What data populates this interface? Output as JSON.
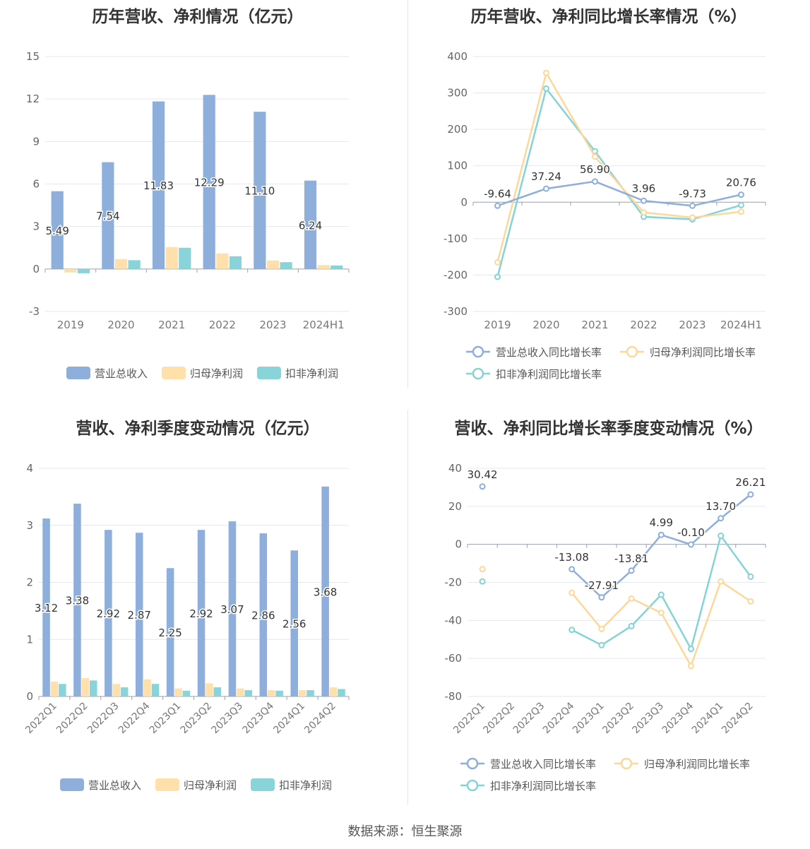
{
  "colors": {
    "revenue": "#8EAEDB",
    "net_profit": "#FFDFAA",
    "deducted_profit": "#88D4D8",
    "revenue_line": "#8EAEDB",
    "net_line": "#FDD89A",
    "deducted_line": "#85D3D6"
  },
  "source": "数据来源：恒生聚源",
  "chart_data": [
    {
      "id": "annual-bars",
      "type": "bar",
      "title": "历年营收、净利情况（亿元）",
      "categories": [
        "2019",
        "2020",
        "2021",
        "2022",
        "2023",
        "2024H1"
      ],
      "ylim": [
        -3,
        15
      ],
      "yticks": [
        15,
        12,
        9,
        6,
        3,
        0,
        -3
      ],
      "series": [
        {
          "name": "营业总收入",
          "values": [
            5.49,
            7.54,
            11.83,
            12.29,
            11.1,
            6.24
          ]
        },
        {
          "name": "归母净利润",
          "values": [
            -0.25,
            0.7,
            1.55,
            1.1,
            0.6,
            0.28
          ]
        },
        {
          "name": "扣非净利润",
          "values": [
            -0.3,
            0.62,
            1.5,
            0.9,
            0.48,
            0.25
          ]
        }
      ],
      "data_labels": [
        "5.49",
        "7.54",
        "11.83",
        "12.29",
        "11.10",
        "6.24"
      ],
      "legend": "bottom"
    },
    {
      "id": "annual-growth",
      "type": "line",
      "title": "历年营收、净利同比增长率情况（%）",
      "categories": [
        "2019",
        "2020",
        "2021",
        "2022",
        "2023",
        "2024H1"
      ],
      "ylim": [
        -300,
        400
      ],
      "yticks": [
        400,
        300,
        200,
        100,
        0,
        -100,
        -200,
        -300
      ],
      "series": [
        {
          "name": "营业总收入同比增长率",
          "values": [
            -9.64,
            37.24,
            56.9,
            3.96,
            -9.73,
            20.76
          ]
        },
        {
          "name": "归母净利润同比增长率",
          "values": [
            -165,
            355,
            125,
            -28,
            -42,
            -26
          ]
        },
        {
          "name": "扣非净利润同比增长率",
          "values": [
            -205,
            312,
            140,
            -40,
            -47,
            -8
          ]
        }
      ],
      "data_labels": [
        "-9.64",
        "37.24",
        "56.90",
        "3.96",
        "-9.73",
        "20.76"
      ],
      "legend": "bottom"
    },
    {
      "id": "quarterly-bars",
      "type": "bar",
      "title": "营收、净利季度变动情况（亿元）",
      "categories": [
        "2022Q1",
        "2022Q2",
        "2022Q3",
        "2022Q4",
        "2023Q1",
        "2023Q2",
        "2023Q3",
        "2023Q4",
        "2024Q1",
        "2024Q2"
      ],
      "ylim": [
        0,
        4
      ],
      "yticks": [
        4,
        3,
        2,
        1,
        0
      ],
      "series": [
        {
          "name": "营业总收入",
          "values": [
            3.12,
            3.38,
            2.92,
            2.87,
            2.25,
            2.92,
            3.07,
            2.86,
            2.56,
            3.68
          ]
        },
        {
          "name": "归母净利润",
          "values": [
            0.26,
            0.32,
            0.22,
            0.3,
            0.14,
            0.23,
            0.14,
            0.11,
            0.11,
            0.16
          ]
        },
        {
          "name": "扣非净利润",
          "values": [
            0.22,
            0.28,
            0.16,
            0.22,
            0.1,
            0.16,
            0.11,
            0.1,
            0.11,
            0.13
          ]
        }
      ],
      "data_labels": [
        "3.12",
        "3.38",
        "2.92",
        "2.87",
        "2.25",
        "2.92",
        "3.07",
        "2.86",
        "2.56",
        "3.68"
      ],
      "legend": "bottom"
    },
    {
      "id": "quarterly-growth",
      "type": "line",
      "title": "营收、净利同比增长率季度变动情况（%）",
      "categories": [
        "2022Q1",
        "2022Q2",
        "2022Q3",
        "2022Q4",
        "2023Q1",
        "2023Q2",
        "2023Q3",
        "2023Q4",
        "2024Q1",
        "2024Q2"
      ],
      "ylim": [
        -80,
        40
      ],
      "yticks": [
        40,
        20,
        0,
        -20,
        -40,
        -60,
        -80
      ],
      "series": [
        {
          "name": "营业总收入同比增长率",
          "values": [
            30.42,
            null,
            null,
            -13.08,
            -27.91,
            -13.81,
            4.99,
            -0.1,
            13.7,
            26.21
          ]
        },
        {
          "name": "归母净利润同比增长率",
          "values": [
            -13,
            null,
            null,
            -25.5,
            -44.5,
            -28.5,
            -36,
            -64,
            -19.5,
            -30
          ]
        },
        {
          "name": "扣非净利润同比增长率",
          "values": [
            -19.5,
            null,
            null,
            -45,
            -53,
            -43,
            -26.5,
            -55,
            4.5,
            -17
          ]
        }
      ],
      "data_labels": [
        "30.42",
        "",
        "",
        "-13.08",
        "-27.91",
        "-13.81",
        "4.99",
        "-0.10",
        "13.70",
        "26.21"
      ],
      "legend": "bottom"
    }
  ]
}
